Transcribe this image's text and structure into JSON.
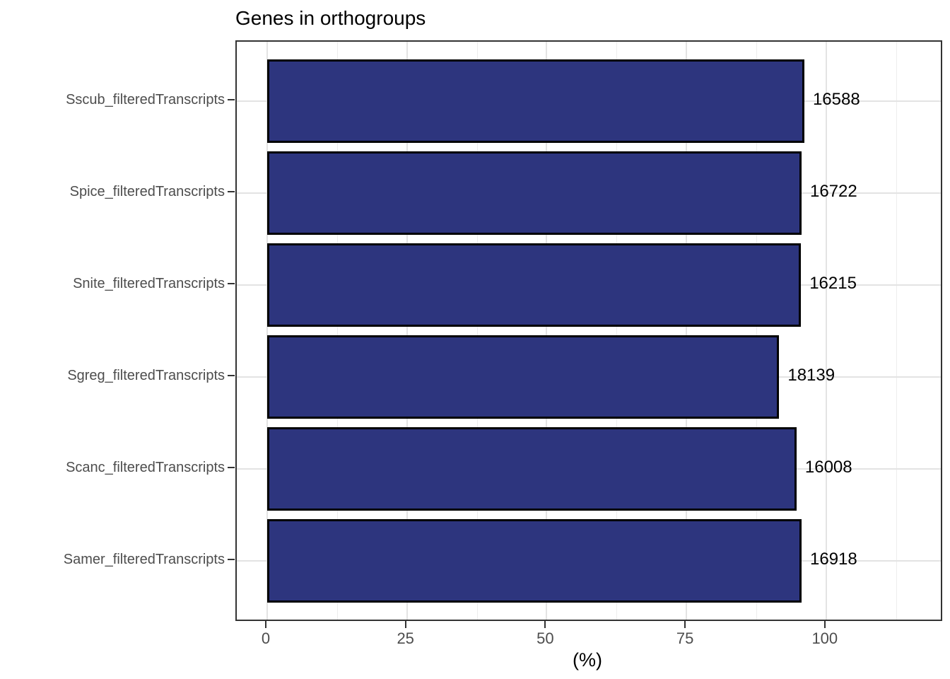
{
  "title": "Genes in orthogroups",
  "x_axis_label": "(%)",
  "chart_data": {
    "type": "bar",
    "orientation": "horizontal",
    "title": "Genes in orthogroups",
    "xlabel": "(%)",
    "ylabel": "",
    "xlim": [
      -5.4,
      120.5
    ],
    "x_major_ticks": [
      0,
      25,
      50,
      75,
      100
    ],
    "x_minor_ticks": [
      12.5,
      37.5,
      62.5,
      87.5,
      112.5
    ],
    "grid": "major horizontal at each category, major+minor vertical, light gray on white (theme_bw style)",
    "legend": false,
    "bars_top_to_bottom": [
      {
        "category": "Sscub_filteredTranscripts",
        "percent": 96.1,
        "gene_count_label": "16588"
      },
      {
        "category": "Spice_filteredTranscripts",
        "percent": 95.6,
        "gene_count_label": "16722"
      },
      {
        "category": "Snite_filteredTranscripts",
        "percent": 95.5,
        "gene_count_label": "16215"
      },
      {
        "category": "Sgreg_filteredTranscripts",
        "percent": 91.6,
        "gene_count_label": "18139"
      },
      {
        "category": "Scanc_filteredTranscripts",
        "percent": 94.7,
        "gene_count_label": "16008"
      },
      {
        "category": "Samer_filteredTranscripts",
        "percent": 95.6,
        "gene_count_label": "16918"
      }
    ],
    "colors": {
      "bar_fill": "#2d357e",
      "bar_border": "#000000",
      "grid_major": "#e3e3e3",
      "grid_minor": "#ededed",
      "panel_border": "#333333",
      "axis_tick": "#333333",
      "axis_text": "#4d4d4d",
      "title_text": "#000000",
      "value_label_text": "#000000",
      "background": "#ffffff"
    }
  }
}
